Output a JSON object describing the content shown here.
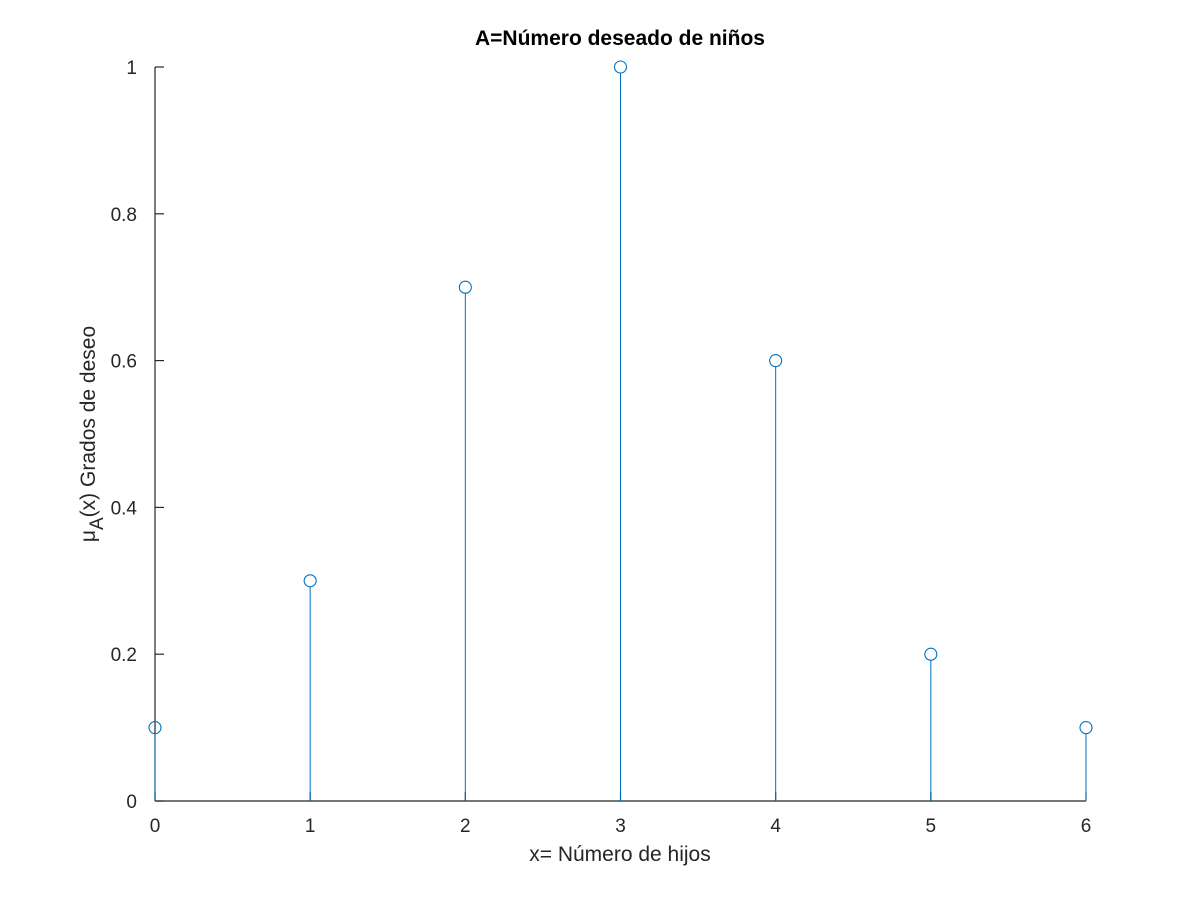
{
  "chart_data": {
    "type": "stem",
    "title": "A=Número deseado de niños",
    "xlabel": "x= Número de hijos",
    "ylabel": {
      "main": "μ",
      "subscript": "A",
      "rest": "(x) Grados de deseo"
    },
    "x": [
      0,
      1,
      2,
      3,
      4,
      5,
      6
    ],
    "y": [
      0.1,
      0.3,
      0.7,
      1.0,
      0.6,
      0.2,
      0.1
    ],
    "xlim": [
      0,
      6
    ],
    "ylim": [
      0,
      1
    ],
    "xticks": [
      0,
      1,
      2,
      3,
      4,
      5,
      6
    ],
    "xtick_labels": [
      "0",
      "1",
      "2",
      "3",
      "4",
      "5",
      "6"
    ],
    "yticks": [
      0,
      0.2,
      0.4,
      0.6,
      0.8,
      1
    ],
    "ytick_labels": [
      "0",
      "0.2",
      "0.4",
      "0.6",
      "0.8",
      "1"
    ],
    "grid": false,
    "marker": "circle-open",
    "series_color": "#0072BD",
    "axis_color": "#262626"
  }
}
